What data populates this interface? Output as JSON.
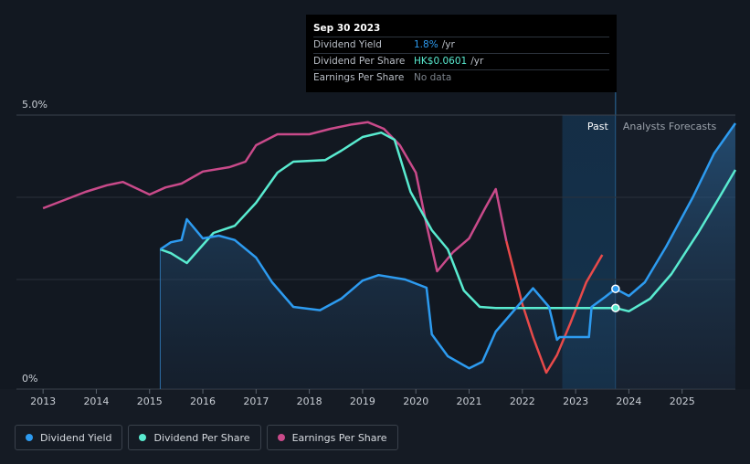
{
  "chart_data": {
    "type": "line",
    "x_ticks": [
      "2013",
      "2014",
      "2015",
      "2016",
      "2017",
      "2018",
      "2019",
      "2020",
      "2021",
      "2022",
      "2023",
      "2024",
      "2025"
    ],
    "y_ticks": [
      "0%",
      "5.0%"
    ],
    "ylim": [
      0,
      5.0
    ],
    "xlim": [
      2012.5,
      2026.0
    ],
    "region_labels": {
      "past": "Past",
      "forecast": "Analysts Forecasts"
    },
    "past_region": [
      2022.75,
      2023.75
    ],
    "series": [
      {
        "name": "Dividend Yield",
        "color": "#2d9bf0",
        "area": true,
        "points": [
          [
            2015.2,
            2.55
          ],
          [
            2015.4,
            2.68
          ],
          [
            2015.6,
            2.72
          ],
          [
            2015.7,
            3.1
          ],
          [
            2016.0,
            2.75
          ],
          [
            2016.3,
            2.8
          ],
          [
            2016.6,
            2.72
          ],
          [
            2017.0,
            2.4
          ],
          [
            2017.3,
            1.95
          ],
          [
            2017.7,
            1.5
          ],
          [
            2018.2,
            1.44
          ],
          [
            2018.6,
            1.65
          ],
          [
            2019.0,
            1.98
          ],
          [
            2019.3,
            2.08
          ],
          [
            2019.8,
            2.0
          ],
          [
            2020.2,
            1.85
          ],
          [
            2020.3,
            1.0
          ],
          [
            2020.6,
            0.6
          ],
          [
            2021.0,
            0.38
          ],
          [
            2021.25,
            0.5
          ],
          [
            2021.5,
            1.05
          ],
          [
            2021.9,
            1.5
          ],
          [
            2022.2,
            1.84
          ],
          [
            2022.5,
            1.5
          ],
          [
            2022.65,
            0.9
          ],
          [
            2022.7,
            0.95
          ],
          [
            2023.25,
            0.95
          ],
          [
            2023.3,
            1.5
          ],
          [
            2023.55,
            1.68
          ],
          [
            2023.75,
            1.83
          ],
          [
            2024.0,
            1.7
          ],
          [
            2024.3,
            1.95
          ],
          [
            2024.7,
            2.6
          ],
          [
            2025.2,
            3.5
          ],
          [
            2025.6,
            4.3
          ],
          [
            2026.0,
            4.85
          ]
        ]
      },
      {
        "name": "Dividend Per Share",
        "color": "#59ebd0",
        "area": false,
        "points": [
          [
            2015.2,
            2.55
          ],
          [
            2015.4,
            2.48
          ],
          [
            2015.7,
            2.3
          ],
          [
            2016.2,
            2.85
          ],
          [
            2016.6,
            2.98
          ],
          [
            2017.0,
            3.4
          ],
          [
            2017.4,
            3.95
          ],
          [
            2017.7,
            4.15
          ],
          [
            2018.3,
            4.18
          ],
          [
            2018.6,
            4.35
          ],
          [
            2019.0,
            4.6
          ],
          [
            2019.35,
            4.68
          ],
          [
            2019.6,
            4.55
          ],
          [
            2019.9,
            3.6
          ],
          [
            2020.3,
            2.9
          ],
          [
            2020.6,
            2.55
          ],
          [
            2020.9,
            1.8
          ],
          [
            2021.2,
            1.5
          ],
          [
            2021.5,
            1.48
          ],
          [
            2022.0,
            1.48
          ],
          [
            2022.75,
            1.48
          ],
          [
            2023.75,
            1.48
          ],
          [
            2024.0,
            1.42
          ],
          [
            2024.4,
            1.65
          ],
          [
            2024.8,
            2.1
          ],
          [
            2025.3,
            2.85
          ],
          [
            2025.7,
            3.5
          ],
          [
            2026.0,
            4.0
          ]
        ]
      },
      {
        "name": "Earnings Per Share",
        "color_past": "#c94a8a",
        "color_recent": "#e84a4a",
        "area": false,
        "points": [
          [
            2013.0,
            3.3
          ],
          [
            2013.4,
            3.45
          ],
          [
            2013.8,
            3.6
          ],
          [
            2014.2,
            3.72
          ],
          [
            2014.5,
            3.78
          ],
          [
            2015.0,
            3.55
          ],
          [
            2015.3,
            3.68
          ],
          [
            2015.6,
            3.75
          ],
          [
            2016.0,
            3.97
          ],
          [
            2016.5,
            4.05
          ],
          [
            2016.8,
            4.15
          ],
          [
            2017.0,
            4.45
          ],
          [
            2017.4,
            4.65
          ],
          [
            2018.0,
            4.65
          ],
          [
            2018.4,
            4.75
          ],
          [
            2018.8,
            4.83
          ],
          [
            2019.1,
            4.87
          ],
          [
            2019.4,
            4.75
          ],
          [
            2019.7,
            4.45
          ],
          [
            2020.0,
            3.95
          ],
          [
            2020.2,
            3.0
          ],
          [
            2020.4,
            2.15
          ],
          [
            2020.7,
            2.5
          ],
          [
            2021.0,
            2.75
          ],
          [
            2021.3,
            3.3
          ],
          [
            2021.5,
            3.65
          ],
          [
            2021.7,
            2.7
          ],
          [
            2022.0,
            1.55
          ],
          [
            2022.2,
            0.95
          ],
          [
            2022.45,
            0.3
          ],
          [
            2022.65,
            0.62
          ],
          [
            2022.9,
            1.2
          ],
          [
            2023.2,
            1.95
          ],
          [
            2023.5,
            2.45
          ]
        ],
        "red_from": 2021.7
      }
    ],
    "markers": [
      {
        "series": "Dividend Yield",
        "x": 2023.75,
        "y": 1.83,
        "color": "#2d9bf0"
      },
      {
        "series": "Dividend Per Share",
        "x": 2023.75,
        "y": 1.48,
        "color": "#59ebd0"
      }
    ]
  },
  "tooltip": {
    "date": "Sep 30 2023",
    "rows": [
      {
        "label": "Dividend Yield",
        "value": "1.8%",
        "unit": "/yr"
      },
      {
        "label": "Dividend Per Share",
        "value": "HK$0.0601",
        "unit": "/yr"
      },
      {
        "label": "Earnings Per Share",
        "value": "No data",
        "unit": ""
      }
    ]
  },
  "legend": [
    {
      "label": "Dividend Yield",
      "color": "#2d9bf0"
    },
    {
      "label": "Dividend Per Share",
      "color": "#59ebd0"
    },
    {
      "label": "Earnings Per Share",
      "color": "#c94a8a"
    }
  ]
}
